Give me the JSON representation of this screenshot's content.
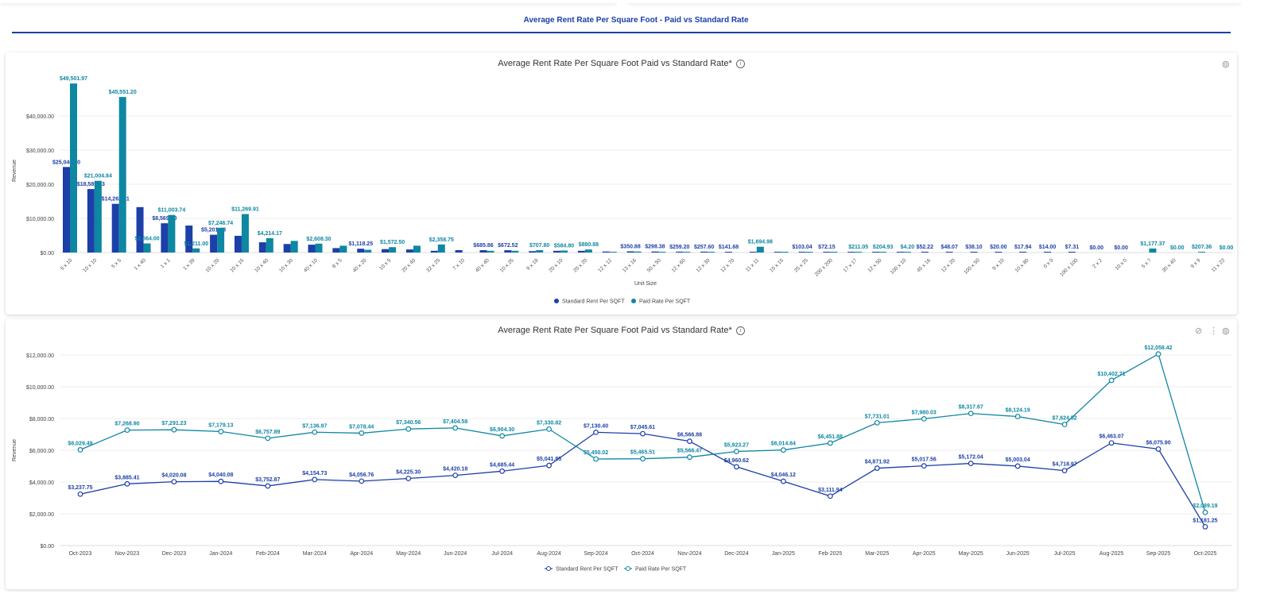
{
  "header": {
    "title": "Average Rent Rate Per Square Foot - Paid vs Standard Rate"
  },
  "colors": {
    "standard": "#1c3fa8",
    "paid": "#0e87a3",
    "accent": "#1a3fa3"
  },
  "chart_data": [
    {
      "type": "bar",
      "title": "Average Rent Rate Per Square Foot Paid vs Standard Rate*",
      "xlabel": "Unit Size",
      "ylabel": "Revenue",
      "ylim": [
        0,
        50000
      ],
      "yticks": [
        "$0.00",
        "$10,000.00",
        "$20,000.00",
        "$30,000.00",
        "$40,000.00"
      ],
      "grid": true,
      "legend": "bottom",
      "categories": [
        "5 x 10",
        "10 x 10",
        "5 x 5",
        "1 x 40",
        "1 x 1",
        "1 x 39",
        "10 x 20",
        "10 x 15",
        "10 x 40",
        "10 x 30",
        "40 x 10",
        "8 x 5",
        "40 x 20",
        "10 x 5",
        "20 x 40",
        "32 x 25",
        "7 x 10",
        "40 x 40",
        "10 x 25",
        "9 x 18",
        "20 x 10",
        "20 x 20",
        "12 x 12",
        "13 x 16",
        "50 x 50",
        "12 x 60",
        "12 x 30",
        "12 x 70",
        "11 x 11",
        "15 x 15",
        "25 x 25",
        "200 x 200",
        "17 x 17",
        "12 x 50",
        "100 x 10",
        "45 x 16",
        "12 x 20",
        "100 x 50",
        "9 x 10",
        "10 x 80",
        "0 x 0",
        "100 x 100",
        "2 x 2",
        "10 x 0",
        "5 x 7",
        "30 x 40",
        "9 x 9",
        "11 x 22"
      ],
      "series": [
        {
          "name": "Standard Rent Per SQFT",
          "values": [
            25046.9,
            18589.93,
            14262.71,
            13300,
            8569.0,
            7900,
            5201.43,
            4900,
            3000,
            2500,
            2300,
            1300,
            1118.25,
            1000,
            900,
            500,
            700,
            685.86,
            672.52,
            400,
            500,
            500,
            300,
            350.88,
            298.38,
            259.2,
            257.6,
            141.68,
            100,
            100,
            103.04,
            72.15,
            20,
            100,
            10,
            52.22,
            48.07,
            38.1,
            20.0,
            17.94,
            14.0,
            7.31,
            0.0,
            0.0,
            0,
            0,
            0,
            0
          ],
          "labels": [
            "$25,046.90",
            "$18,589.93",
            "$14,262.71",
            null,
            "$8,569.00",
            null,
            "$5,201.43",
            null,
            null,
            null,
            null,
            null,
            "$1,118.25",
            null,
            null,
            null,
            null,
            "$685.86",
            "$672.52",
            null,
            null,
            null,
            null,
            "$350.88",
            "$298.38",
            "$259.20",
            "$257.60",
            "$141.68",
            null,
            null,
            "$103.04",
            "$72.15",
            null,
            null,
            null,
            "$52.22",
            "$48.07",
            "$38.10",
            "$20.00",
            "$17.94",
            "$14.00",
            "$7.31",
            "$0.00",
            "$0.00",
            null,
            null,
            null,
            null
          ]
        },
        {
          "name": "Paid Rate Per SQFT",
          "values": [
            49501.97,
            21004.84,
            45551.2,
            2664.0,
            11003.74,
            1211.0,
            7246.74,
            11269.91,
            4214.17,
            3400,
            2608.3,
            2000,
            800,
            1572.5,
            2000,
            2358.75,
            0,
            500,
            500,
            707.8,
            584.8,
            880.88,
            200,
            300,
            200,
            200,
            200,
            0,
            1694.98,
            100,
            100,
            50,
            211.05,
            204.93,
            4.2,
            0,
            0,
            0,
            0,
            0,
            0,
            0,
            0,
            0,
            1177.37,
            0.0,
            207.36,
            0.0
          ],
          "labels": [
            "$49,501.97",
            "$21,004.84",
            "$45,551.20",
            "$2,664.00",
            "$11,003.74",
            "$1,211.00",
            "$7,246.74",
            "$11,269.91",
            "$4,214.17",
            null,
            "$2,608.30",
            null,
            null,
            "$1,572.50",
            null,
            "$2,358.75",
            null,
            null,
            null,
            "$707.80",
            "$584.80",
            "$880.88",
            null,
            null,
            null,
            null,
            null,
            null,
            "$1,694.98",
            null,
            null,
            null,
            "$211.05",
            "$204.93",
            "$4.20",
            null,
            null,
            null,
            null,
            null,
            null,
            null,
            null,
            null,
            "$1,177.37",
            "$0.00",
            "$207.36",
            "$0.00"
          ]
        }
      ]
    },
    {
      "type": "line",
      "title": "Average Rent Rate Per Square Foot Paid vs Standard Rate*",
      "xlabel": "",
      "ylabel": "Revenue",
      "ylim": [
        0,
        12000
      ],
      "yticks": [
        "$0.00",
        "$2,000.00",
        "$4,000.00",
        "$6,000.00",
        "$8,000.00",
        "$10,000.00",
        "$12,000.00"
      ],
      "grid": true,
      "legend": "bottom",
      "categories": [
        "Oct-2023",
        "Nov-2023",
        "Dec-2023",
        "Jan-2024",
        "Feb-2024",
        "Mar-2024",
        "Apr-2024",
        "May-2024",
        "Jun-2024",
        "Jul-2024",
        "Aug-2024",
        "Sep-2024",
        "Oct-2024",
        "Nov-2024",
        "Dec-2024",
        "Jan-2025",
        "Feb-2025",
        "Mar-2025",
        "Apr-2025",
        "May-2025",
        "Jun-2025",
        "Jul-2025",
        "Aug-2025",
        "Sep-2025",
        "Oct-2025"
      ],
      "series": [
        {
          "name": "Standard Rent Per SQFT",
          "values": [
            3237.75,
            3885.41,
            4020.08,
            4040.08,
            3752.87,
            4154.73,
            4056.76,
            4225.3,
            4420.18,
            4685.44,
            5041.85,
            7130.4,
            7045.61,
            6566.88,
            4960.62,
            4046.12,
            3111.94,
            4871.92,
            5017.56,
            5172.04,
            5003.04,
            4718.97,
            6463.07,
            6075.9,
            1181.25
          ]
        },
        {
          "name": "Paid Rate Per SQFT",
          "values": [
            6029.49,
            7268.9,
            7291.23,
            7179.13,
            6757.89,
            7136.97,
            7078.44,
            7340.56,
            7404.58,
            6904.3,
            7330.82,
            5450.02,
            5465.51,
            5566.47,
            5923.27,
            6014.84,
            6451.88,
            7731.01,
            7980.03,
            8317.67,
            8124.19,
            7624.52,
            10402.71,
            12058.42,
            2089.19
          ]
        }
      ]
    }
  ],
  "icons": {
    "info": "info-icon",
    "globe": "globe-icon",
    "explore": "compass-icon",
    "more": "more-vert-icon"
  }
}
